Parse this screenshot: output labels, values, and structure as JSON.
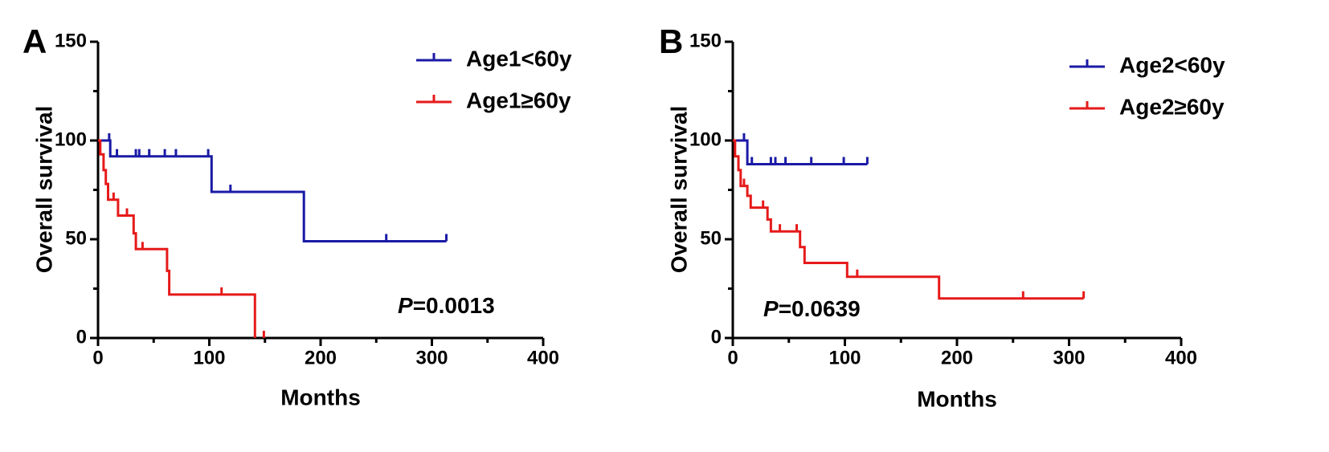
{
  "chart_data": [
    {
      "type": "line",
      "subtype": "kaplan-meier",
      "panel_label": "A",
      "xlabel": "Months",
      "ylabel": "Overall survival",
      "xlim": [
        0,
        400
      ],
      "ylim": [
        0,
        150
      ],
      "x_ticks": [
        0,
        100,
        200,
        300,
        400
      ],
      "x_tick_labels": [
        "0",
        "100",
        "200",
        "300",
        "400"
      ],
      "y_ticks": [
        0,
        50,
        100,
        150
      ],
      "y_tick_labels": [
        "0",
        "50",
        "100",
        "150"
      ],
      "p_prefix": "P",
      "p_value": "=0.0013",
      "legend_position": "top-right",
      "series": [
        {
          "name": "Age1<60y",
          "color": "#1a1aa6",
          "steps": [
            [
              0,
              100
            ],
            [
              11,
              100
            ],
            [
              11,
              92
            ],
            [
              102,
              92
            ],
            [
              102,
              74
            ],
            [
              185,
              74
            ],
            [
              185,
              49
            ],
            [
              313,
              49
            ]
          ],
          "censored": [
            [
              10,
              100
            ],
            [
              17,
              92
            ],
            [
              34,
              92
            ],
            [
              37,
              92
            ],
            [
              46,
              92
            ],
            [
              60,
              92
            ],
            [
              70,
              92
            ],
            [
              99,
              92
            ],
            [
              119,
              74
            ],
            [
              259,
              49
            ],
            [
              313,
              49
            ]
          ]
        },
        {
          "name": "Age1≥60y",
          "color": "#e61a1a",
          "steps": [
            [
              0,
              100
            ],
            [
              2,
              100
            ],
            [
              2,
              93
            ],
            [
              5,
              93
            ],
            [
              5,
              85
            ],
            [
              7,
              85
            ],
            [
              7,
              78
            ],
            [
              9,
              78
            ],
            [
              9,
              70
            ],
            [
              18,
              70
            ],
            [
              18,
              62
            ],
            [
              32,
              62
            ],
            [
              32,
              53
            ],
            [
              34,
              53
            ],
            [
              34,
              45
            ],
            [
              62,
              45
            ],
            [
              62,
              34
            ],
            [
              64,
              34
            ],
            [
              64,
              22
            ],
            [
              141,
              22
            ],
            [
              141,
              0
            ]
          ],
          "censored": [
            [
              14,
              70
            ],
            [
              26,
              62
            ],
            [
              40,
              45
            ],
            [
              111,
              22
            ],
            [
              149,
              0
            ]
          ]
        }
      ]
    },
    {
      "type": "line",
      "subtype": "kaplan-meier",
      "panel_label": "B",
      "xlabel": "Months",
      "ylabel": "Overall survival",
      "xlim": [
        0,
        400
      ],
      "ylim": [
        0,
        150
      ],
      "x_ticks": [
        0,
        100,
        200,
        300,
        400
      ],
      "x_tick_labels": [
        "0",
        "100",
        "200",
        "300",
        "400"
      ],
      "y_ticks": [
        0,
        50,
        100,
        150
      ],
      "y_tick_labels": [
        "0",
        "50",
        "100",
        "150"
      ],
      "p_prefix": "P",
      "p_value": "=0.0639",
      "legend_position": "top-right",
      "series": [
        {
          "name": "Age2<60y",
          "color": "#1a1aa6",
          "steps": [
            [
              0,
              100
            ],
            [
              13,
              100
            ],
            [
              13,
              88
            ],
            [
              120,
              88
            ]
          ],
          "censored": [
            [
              10,
              100
            ],
            [
              17,
              88
            ],
            [
              34,
              88
            ],
            [
              38,
              88
            ],
            [
              47,
              88
            ],
            [
              70,
              88
            ],
            [
              99,
              88
            ],
            [
              120,
              88
            ]
          ]
        },
        {
          "name": "Age2≥60y",
          "color": "#e61a1a",
          "steps": [
            [
              0,
              100
            ],
            [
              2,
              100
            ],
            [
              2,
              92
            ],
            [
              5,
              92
            ],
            [
              5,
              85
            ],
            [
              7,
              85
            ],
            [
              7,
              77
            ],
            [
              13,
              77
            ],
            [
              13,
              72
            ],
            [
              16,
              72
            ],
            [
              16,
              66
            ],
            [
              31,
              66
            ],
            [
              31,
              60
            ],
            [
              34,
              60
            ],
            [
              34,
              54
            ],
            [
              60,
              54
            ],
            [
              60,
              46
            ],
            [
              64,
              46
            ],
            [
              64,
              38
            ],
            [
              102,
              38
            ],
            [
              102,
              31
            ],
            [
              184,
              31
            ],
            [
              184,
              20
            ],
            [
              313,
              20
            ]
          ],
          "censored": [
            [
              10,
              77
            ],
            [
              27,
              66
            ],
            [
              42,
              54
            ],
            [
              57,
              54
            ],
            [
              111,
              31
            ],
            [
              259,
              20
            ],
            [
              313,
              20
            ]
          ]
        }
      ]
    }
  ]
}
